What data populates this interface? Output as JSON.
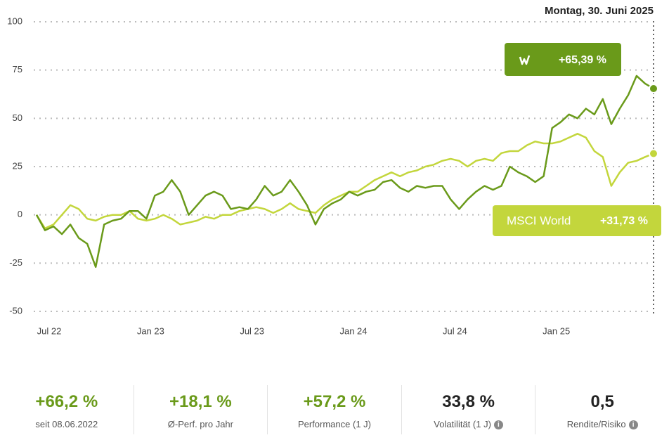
{
  "chart_data": {
    "type": "line",
    "date_label": "Montag, 30. Juni 2025",
    "categories": [
      null,
      "Jul 22",
      null,
      null,
      null,
      null,
      null,
      null,
      null,
      null,
      null,
      null,
      null,
      "Jan 23",
      null,
      null,
      null,
      null,
      null,
      null,
      null,
      null,
      null,
      null,
      null,
      "Jul 23",
      null,
      null,
      null,
      null,
      null,
      null,
      null,
      null,
      null,
      null,
      null,
      "Jan 24",
      null,
      null,
      null,
      null,
      null,
      null,
      null,
      null,
      null,
      null,
      null,
      "Jul 24",
      null,
      null,
      null,
      null,
      null,
      null,
      null,
      null,
      null,
      null,
      null,
      "Jan 25",
      null,
      null,
      null,
      null,
      null,
      null,
      null,
      null,
      null,
      null,
      null,
      null
    ],
    "series": [
      {
        "color": "#6a9a1a",
        "values": [
          0,
          -8,
          -6,
          -10,
          -5,
          -12,
          -15,
          -27,
          -5,
          -3,
          -2,
          2,
          2,
          -2,
          10,
          12,
          18,
          12,
          0,
          5,
          10,
          12,
          10,
          3,
          4,
          3,
          8,
          15,
          10,
          12,
          18,
          12,
          5,
          -5,
          3,
          6,
          8,
          12,
          10,
          12,
          13,
          17,
          18,
          14,
          12,
          15,
          14,
          15,
          15,
          8,
          3,
          8,
          12,
          15,
          13,
          15,
          25,
          22,
          20,
          17,
          20,
          45,
          48,
          52,
          50,
          55,
          52,
          60,
          47,
          55,
          62,
          72,
          68,
          65.39
        ],
        "value_labels": [
          null,
          null,
          null,
          null,
          null,
          null,
          null,
          null,
          null,
          null,
          null,
          null,
          null,
          null,
          null,
          null,
          null,
          null,
          null,
          null,
          null,
          null,
          null,
          null,
          null,
          null,
          null,
          null,
          null,
          null,
          null,
          null,
          null,
          null,
          null,
          null,
          null,
          null,
          null,
          null,
          null,
          null,
          null,
          null,
          null,
          null,
          null,
          null,
          null,
          null,
          null,
          null,
          null,
          null,
          null,
          null,
          null,
          null,
          null,
          null,
          null,
          null,
          null,
          null,
          null,
          null,
          null,
          null,
          null,
          null,
          null,
          null,
          null,
          "+65,39 %"
        ]
      },
      {
        "name": "MSCI World",
        "color": "#c3d63c",
        "values": [
          0,
          -7,
          -5,
          0,
          5,
          3,
          -2,
          -3,
          -1,
          0,
          0,
          2,
          -2,
          -3,
          -2,
          0,
          -2,
          -5,
          -4,
          -3,
          -1,
          -2,
          0,
          0,
          2,
          3,
          4,
          3,
          1,
          3,
          6,
          3,
          2,
          1,
          5,
          8,
          10,
          12,
          12,
          15,
          18,
          20,
          22,
          20,
          22,
          23,
          25,
          26,
          28,
          29,
          28,
          25,
          28,
          29,
          28,
          32,
          33,
          33,
          36,
          38,
          37,
          37,
          38,
          40,
          42,
          40,
          33,
          30,
          15,
          22,
          27,
          28,
          30,
          31.73
        ],
        "value_labels": [
          null,
          null,
          null,
          null,
          null,
          null,
          null,
          null,
          null,
          null,
          null,
          null,
          null,
          null,
          null,
          null,
          null,
          null,
          null,
          null,
          null,
          null,
          null,
          null,
          null,
          null,
          null,
          null,
          null,
          null,
          null,
          null,
          null,
          null,
          null,
          null,
          null,
          null,
          null,
          null,
          null,
          null,
          null,
          null,
          null,
          null,
          null,
          null,
          null,
          null,
          null,
          null,
          null,
          null,
          null,
          null,
          null,
          null,
          null,
          null,
          null,
          null,
          null,
          null,
          null,
          null,
          null,
          null,
          null,
          null,
          null,
          null,
          null,
          "+31,73 %"
        ]
      }
    ],
    "ylim": [
      -50,
      100
    ],
    "yticks": [
      -50,
      -25,
      0,
      25,
      50,
      75,
      100
    ],
    "grid": true
  },
  "stats": [
    {
      "value": "+66,2 %",
      "label": "seit 08.06.2022"
    },
    {
      "value": "+18,1 %",
      "label": "Ø-Perf. pro Jahr"
    },
    {
      "value": "+57,2 %",
      "label": "Performance (1 J)"
    },
    {
      "value": "33,8 %",
      "label": "Volatilität (1 J)"
    },
    {
      "value": "0,5",
      "label": "Rendite/Risiko"
    }
  ]
}
